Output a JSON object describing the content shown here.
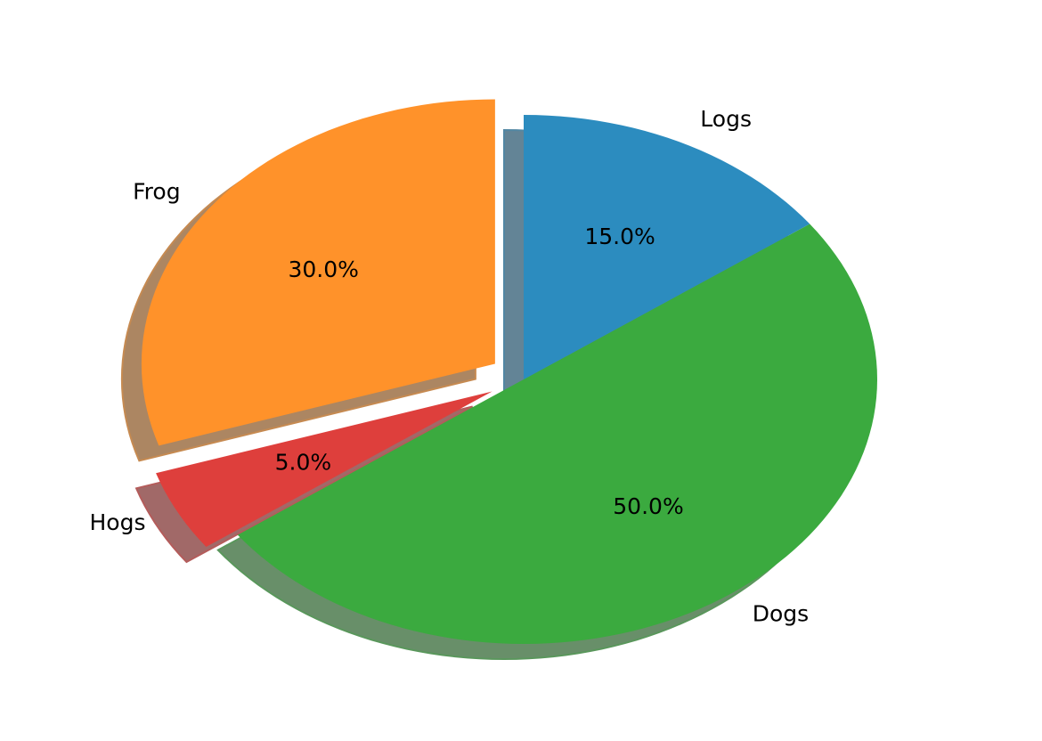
{
  "chart_data": {
    "type": "pie",
    "categories": [
      "Frog",
      "Hogs",
      "Dogs",
      "Logs"
    ],
    "values": [
      30,
      5,
      50,
      15
    ],
    "percent_labels": [
      "30.0%",
      "5.0%",
      "50.0%",
      "15.0%"
    ],
    "colors": [
      "#ff922a",
      "#de3f3c",
      "#3baa3f",
      "#2c8cbf"
    ],
    "exploded": [
      true,
      true,
      false,
      false
    ],
    "shadow": true,
    "start_angle_deg": 90,
    "direction": "counterclockwise"
  }
}
